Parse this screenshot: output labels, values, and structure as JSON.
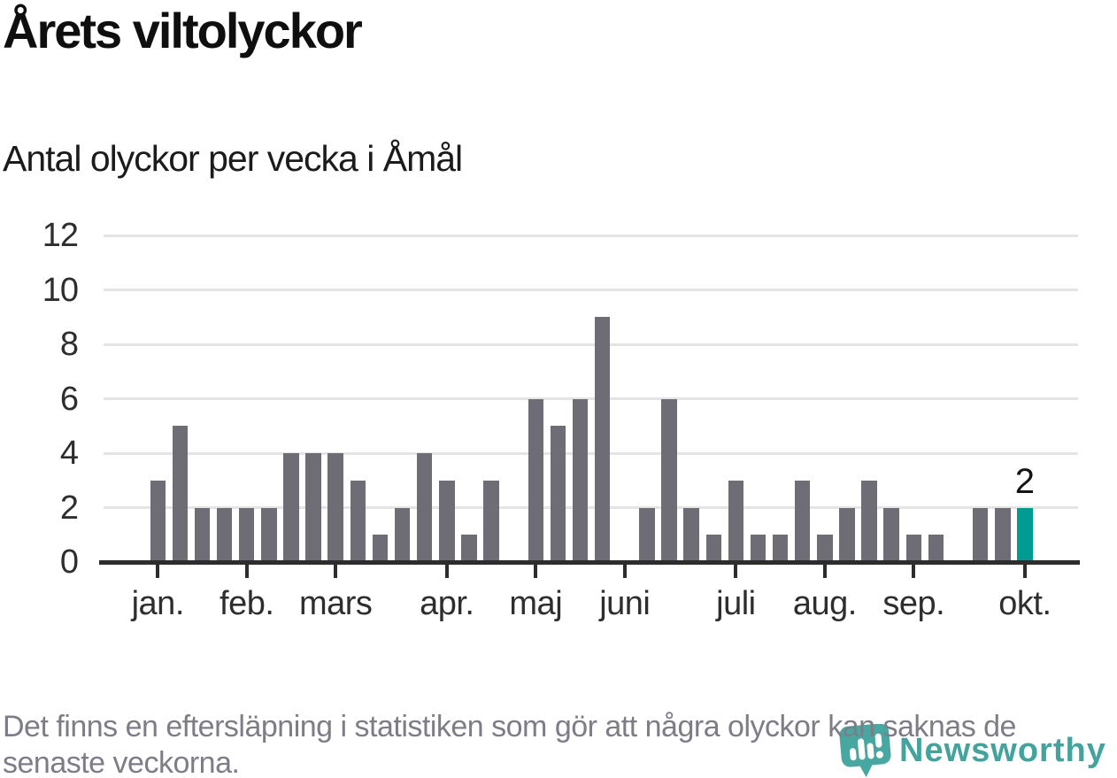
{
  "title": "Årets viltolyckor",
  "subtitle": "Antal olyckor per vecka i Åmål",
  "footnote": "Det finns en eftersläpning i statistiken som gör att några olyckor kan saknas de senaste veckorna.",
  "logo": {
    "wordmark": "Newsworthy"
  },
  "colors": {
    "bar": "#6e6d75",
    "highlight": "#009c93",
    "grid": "#e4e4e4",
    "axis": "#2d2d2d",
    "axis_text": "#2e2e2e",
    "footnote_text": "#7e7d87",
    "logo_teal": "#44a49d"
  },
  "chart_data": {
    "type": "bar",
    "title": "Årets viltolyckor",
    "subtitle": "Antal olyckor per vecka i Åmål",
    "x_unit": "vecka (week)",
    "ylabel": "Antal olyckor",
    "ylim": [
      0,
      12
    ],
    "y_ticks": [
      0,
      2,
      4,
      6,
      8,
      10,
      12
    ],
    "grid": true,
    "values": [
      3,
      5,
      2,
      2,
      2,
      2,
      4,
      4,
      4,
      3,
      1,
      2,
      4,
      3,
      1,
      3,
      0,
      6,
      5,
      6,
      9,
      0,
      2,
      6,
      2,
      1,
      3,
      1,
      1,
      3,
      1,
      2,
      3,
      2,
      1,
      1,
      0,
      2,
      2,
      2
    ],
    "highlight_index": 39,
    "highlight_label": "2",
    "month_ticks": [
      {
        "label": "jan.",
        "slot": 0
      },
      {
        "label": "feb.",
        "slot": 4
      },
      {
        "label": "mars",
        "slot": 8
      },
      {
        "label": "apr.",
        "slot": 13
      },
      {
        "label": "maj",
        "slot": 17
      },
      {
        "label": "juni",
        "slot": 21
      },
      {
        "label": "juli",
        "slot": 26
      },
      {
        "label": "aug.",
        "slot": 30
      },
      {
        "label": "sep.",
        "slot": 34
      },
      {
        "label": "okt.",
        "slot": 39
      }
    ]
  }
}
